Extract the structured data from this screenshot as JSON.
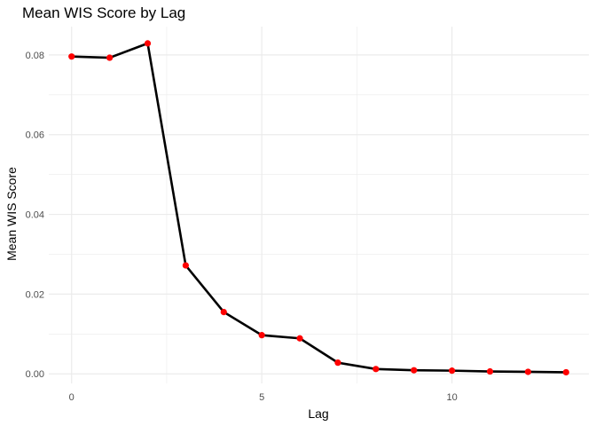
{
  "chart_data": {
    "type": "line",
    "title": "Mean WIS Score by Lag",
    "xlabel": "Lag",
    "ylabel": "Mean WIS Score",
    "x": [
      0,
      1,
      2,
      3,
      4,
      5,
      6,
      7,
      8,
      9,
      10,
      11,
      12,
      13
    ],
    "values": [
      0.0796,
      0.0793,
      0.0829,
      0.0272,
      0.0155,
      0.0097,
      0.0089,
      0.0028,
      0.0012,
      0.0009,
      0.0008,
      0.0006,
      0.0005,
      0.0004
    ],
    "xlim": [
      -0.6,
      13.6
    ],
    "ylim": [
      -0.0024,
      0.0871
    ],
    "x_ticks": [
      0,
      5,
      10
    ],
    "x_tick_labels": [
      "0",
      "5",
      "10"
    ],
    "y_ticks": [
      0,
      0.02,
      0.04,
      0.06,
      0.08
    ],
    "y_tick_labels": [
      "0.00",
      "0.02",
      "0.04",
      "0.06",
      "0.08"
    ],
    "grid": true,
    "line_color": "#000000",
    "point_color": "#ff0000",
    "grid_color": "#ebebeb"
  }
}
